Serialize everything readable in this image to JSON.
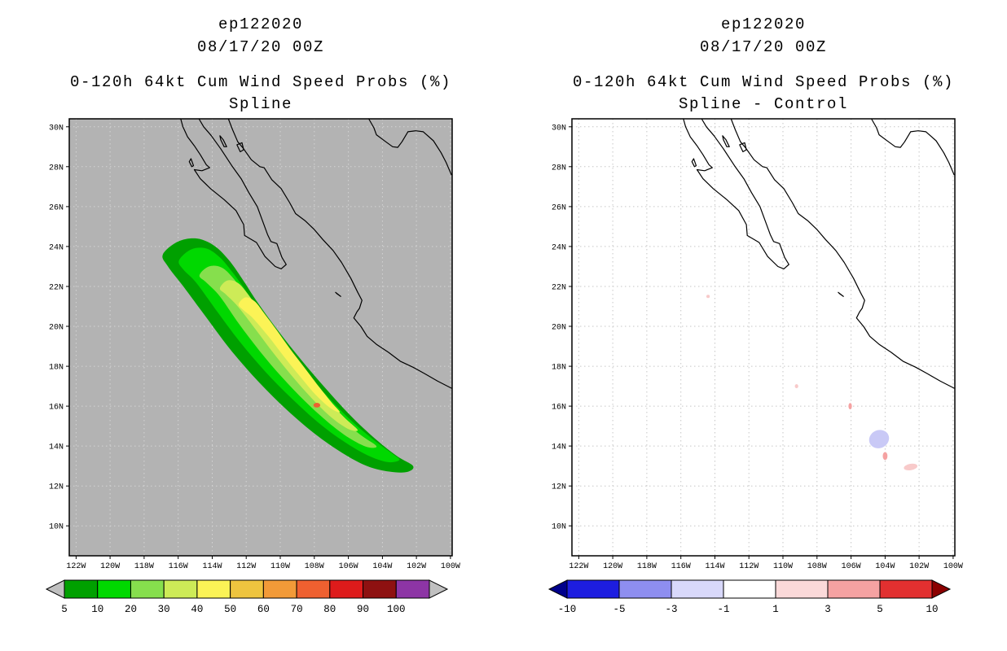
{
  "figure": {
    "panels": [
      {
        "title_line1": "ep122020",
        "title_line2": "08/17/20 00Z",
        "subtitle_line1": "0-120h 64kt Cum Wind Speed Probs (%)",
        "subtitle_line2": "Spline"
      },
      {
        "title_line1": "ep122020",
        "title_line2": "08/17/20 00Z",
        "subtitle_line1": "0-120h 64kt Cum Wind Speed Probs (%)",
        "subtitle_line2": "Spline - Control"
      }
    ]
  },
  "axes": {
    "lat_labels": [
      "30N",
      "28N",
      "26N",
      "24N",
      "22N",
      "20N",
      "18N",
      "16N",
      "14N",
      "12N",
      "10N"
    ],
    "lon_labels": [
      "122W",
      "120W",
      "118W",
      "116W",
      "114W",
      "112W",
      "110W",
      "108W",
      "106W",
      "104W",
      "102W",
      "100W"
    ]
  },
  "chart_data": {
    "type": "heatmap",
    "subtype": "filled_contour_probability_map",
    "storm_id": "ep122020",
    "init_time": "08/17/20 00Z",
    "variable": "0-120h 64kt Cum Wind Speed Probs (%)",
    "map_extent": {
      "lon_min": -122.4,
      "lon_max": -99.9,
      "lat_min": 8.5,
      "lat_max": 30.4
    },
    "graticule_deg": 2,
    "panels": [
      {
        "name": "Spline",
        "background": "#b3b3b3",
        "grid_color": "#d4d4d4",
        "contours": [
          {
            "level_pct": 5,
            "color": "#00a000",
            "points": [
              [
                -116.9,
                23.6
              ],
              [
                -116.0,
                24.25
              ],
              [
                -114.9,
                24.4
              ],
              [
                -113.9,
                24.05
              ],
              [
                -113.05,
                23.35
              ],
              [
                -112.25,
                22.4
              ],
              [
                -111.3,
                21.15
              ],
              [
                -110.1,
                19.75
              ],
              [
                -108.8,
                18.35
              ],
              [
                -107.4,
                16.95
              ],
              [
                -105.9,
                15.55
              ],
              [
                -104.4,
                14.35
              ],
              [
                -103.15,
                13.5
              ],
              [
                -102.2,
                13.0
              ],
              [
                -102.55,
                12.7
              ],
              [
                -103.6,
                12.72
              ],
              [
                -104.9,
                13.0
              ],
              [
                -106.35,
                13.65
              ],
              [
                -107.95,
                14.6
              ],
              [
                -109.6,
                15.8
              ],
              [
                -111.25,
                17.2
              ],
              [
                -112.85,
                18.75
              ],
              [
                -114.35,
                20.45
              ],
              [
                -115.65,
                21.95
              ],
              [
                -116.6,
                23.0
              ]
            ]
          },
          {
            "level_pct": 10,
            "color": "#00d800",
            "points": [
              [
                -115.95,
                23.3
              ],
              [
                -115.25,
                23.85
              ],
              [
                -114.35,
                23.9
              ],
              [
                -113.55,
                23.45
              ],
              [
                -112.8,
                22.7
              ],
              [
                -112.0,
                21.75
              ],
              [
                -111.05,
                20.55
              ],
              [
                -109.9,
                19.2
              ],
              [
                -108.6,
                17.85
              ],
              [
                -107.25,
                16.5
              ],
              [
                -105.8,
                15.25
              ],
              [
                -104.5,
                14.3
              ],
              [
                -103.4,
                13.6
              ],
              [
                -103.0,
                13.3
              ],
              [
                -103.7,
                13.2
              ],
              [
                -104.9,
                13.55
              ],
              [
                -106.3,
                14.25
              ],
              [
                -107.8,
                15.2
              ],
              [
                -109.35,
                16.4
              ],
              [
                -110.9,
                17.75
              ],
              [
                -112.4,
                19.25
              ],
              [
                -113.8,
                20.85
              ],
              [
                -114.95,
                22.2
              ],
              [
                -115.7,
                22.85
              ]
            ]
          },
          {
            "level_pct": 20,
            "color": "#86df4d",
            "points": [
              [
                -114.75,
                22.55
              ],
              [
                -114.2,
                23.0
              ],
              [
                -113.45,
                22.95
              ],
              [
                -112.75,
                22.4
              ],
              [
                -112.0,
                21.5
              ],
              [
                -111.15,
                20.4
              ],
              [
                -110.15,
                19.15
              ],
              [
                -109.0,
                17.85
              ],
              [
                -107.8,
                16.6
              ],
              [
                -106.55,
                15.5
              ],
              [
                -105.35,
                14.6
              ],
              [
                -104.35,
                14.0
              ],
              [
                -104.9,
                13.95
              ],
              [
                -105.95,
                14.4
              ],
              [
                -107.2,
                15.2
              ],
              [
                -108.55,
                16.25
              ],
              [
                -109.9,
                17.45
              ],
              [
                -111.2,
                18.75
              ],
              [
                -112.45,
                20.15
              ],
              [
                -113.55,
                21.5
              ],
              [
                -114.35,
                22.2
              ]
            ]
          },
          {
            "level_pct": 30,
            "color": "#cdeb57",
            "points": [
              [
                -113.55,
                21.9
              ],
              [
                -113.1,
                22.3
              ],
              [
                -112.45,
                22.15
              ],
              [
                -111.8,
                21.5
              ],
              [
                -111.05,
                20.6
              ],
              [
                -110.2,
                19.55
              ],
              [
                -109.25,
                18.45
              ],
              [
                -108.25,
                17.35
              ],
              [
                -107.2,
                16.3
              ],
              [
                -106.2,
                15.4
              ],
              [
                -105.45,
                14.8
              ],
              [
                -106.0,
                14.85
              ],
              [
                -106.95,
                15.4
              ],
              [
                -108.05,
                16.3
              ],
              [
                -109.2,
                17.4
              ],
              [
                -110.35,
                18.6
              ],
              [
                -111.45,
                19.85
              ],
              [
                -112.5,
                21.0
              ],
              [
                -113.2,
                21.6
              ]
            ]
          },
          {
            "level_pct": 40,
            "color": "#fbf356",
            "points": [
              [
                -112.45,
                21.1
              ],
              [
                -112.05,
                21.45
              ],
              [
                -111.5,
                21.25
              ],
              [
                -110.9,
                20.6
              ],
              [
                -110.2,
                19.8
              ],
              [
                -109.45,
                18.9
              ],
              [
                -108.6,
                17.95
              ],
              [
                -107.75,
                17.0
              ],
              [
                -106.95,
                16.15
              ],
              [
                -106.5,
                15.7
              ],
              [
                -107.05,
                15.9
              ],
              [
                -107.9,
                16.55
              ],
              [
                -108.85,
                17.5
              ],
              [
                -109.8,
                18.5
              ],
              [
                -110.7,
                19.5
              ],
              [
                -111.6,
                20.4
              ],
              [
                -112.15,
                20.8
              ]
            ]
          }
        ],
        "patches": [
          {
            "center": [
              -107.85,
              16.05
            ],
            "rx_deg": 0.2,
            "ry_deg": 0.12,
            "rot_deg": 0,
            "color": "#ef6030",
            "value_bin": "local max speck"
          }
        ]
      },
      {
        "name": "Spline - Control",
        "background": "#ffffff",
        "grid_color": "#c6c6c6",
        "contours": [],
        "patches": [
          {
            "center": [
              -104.35,
              14.35
            ],
            "rx_deg": 0.6,
            "ry_deg": 0.45,
            "rot_deg": -25,
            "color": "#c9c9f6",
            "value_bin": "-1 to -3"
          },
          {
            "center": [
              -104.0,
              13.5
            ],
            "rx_deg": 0.14,
            "ry_deg": 0.2,
            "rot_deg": 0,
            "color": "#f5a2a2",
            "value_bin": "+3 to +5"
          },
          {
            "center": [
              -102.5,
              12.95
            ],
            "rx_deg": 0.4,
            "ry_deg": 0.16,
            "rot_deg": -10,
            "color": "#f8caca",
            "value_bin": "+1 to +3"
          },
          {
            "center": [
              -106.05,
              16.0
            ],
            "rx_deg": 0.1,
            "ry_deg": 0.16,
            "rot_deg": 0,
            "color": "#f5a2a2",
            "value_bin": "+3 to +5"
          },
          {
            "center": [
              -109.2,
              17.0
            ],
            "rx_deg": 0.1,
            "ry_deg": 0.1,
            "rot_deg": 0,
            "color": "#f8caca",
            "value_bin": "+1 to +3"
          },
          {
            "center": [
              -114.4,
              21.5
            ],
            "rx_deg": 0.1,
            "ry_deg": 0.08,
            "rot_deg": 0,
            "color": "#f8caca",
            "value_bin": "+1 to +3"
          }
        ]
      }
    ],
    "colorbars": [
      {
        "labels": [
          "5",
          "10",
          "20",
          "30",
          "40",
          "50",
          "60",
          "70",
          "80",
          "90",
          "100"
        ],
        "colors": [
          "#00a000",
          "#00d800",
          "#86df4d",
          "#cdeb57",
          "#fbf356",
          "#eec43f",
          "#f29a38",
          "#ef6030",
          "#de1b1b",
          "#8e1111",
          "#8d35a5"
        ],
        "left_arrow_color": "#c0c0c0",
        "right_arrow_color": "#c0c0c0"
      },
      {
        "labels": [
          "-10",
          "-5",
          "-3",
          "-1",
          "1",
          "3",
          "5",
          "10"
        ],
        "colors": [
          "#1d1de0",
          "#8e8ef0",
          "#d8d8fa",
          "#ffffff",
          "#fbd9d9",
          "#f5a2a2",
          "#e23030"
        ],
        "left_arrow_color": "#00008b",
        "right_arrow_color": "#8b0000"
      }
    ]
  }
}
